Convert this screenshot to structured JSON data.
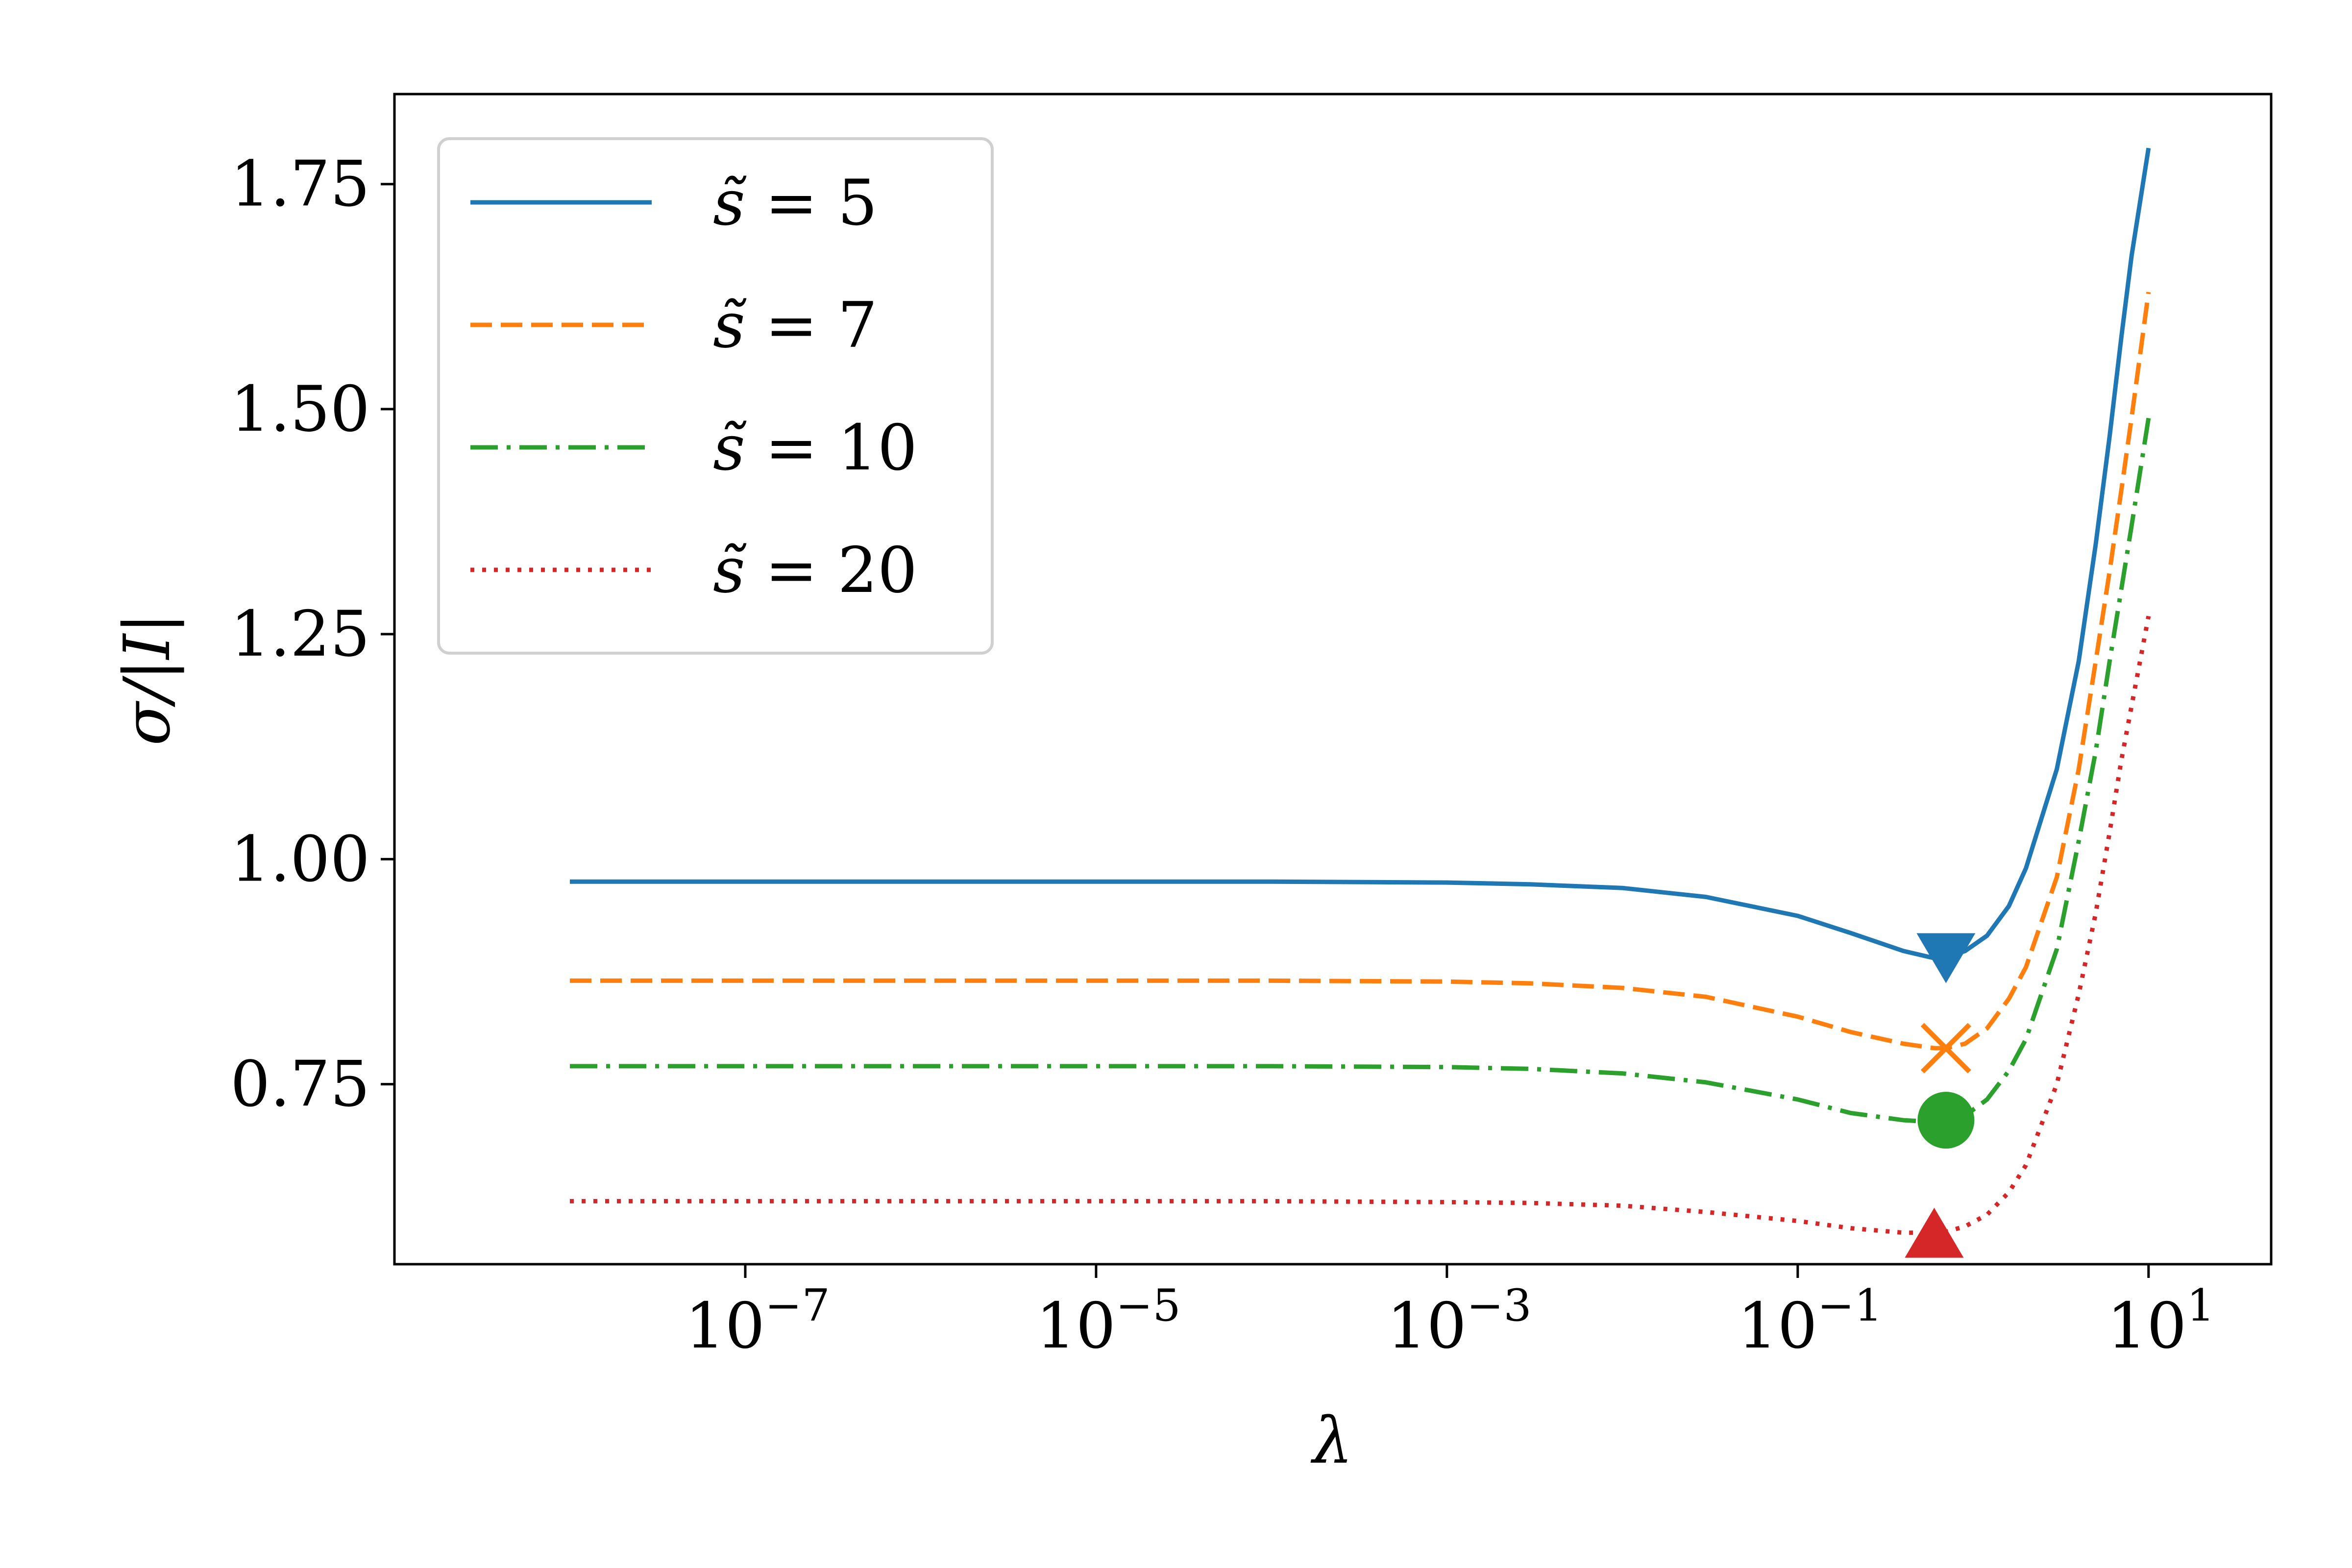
{
  "chart_data": {
    "type": "line",
    "xlabel": "λ",
    "ylabel": "σ/|I|",
    "x_scale": "log",
    "xlim": [
      1e-09,
      50
    ],
    "ylim": [
      0.55,
      1.85
    ],
    "x_ticks": [
      {
        "value": 1e-07,
        "base": "10",
        "exp": "−7"
      },
      {
        "value": 1e-05,
        "base": "10",
        "exp": "−5"
      },
      {
        "value": 0.001,
        "base": "10",
        "exp": "−3"
      },
      {
        "value": 0.1,
        "base": "10",
        "exp": "−1"
      },
      {
        "value": 10,
        "base": "10",
        "exp": "1"
      }
    ],
    "y_ticks": [
      {
        "value": 0.75,
        "label": "0.75"
      },
      {
        "value": 1.0,
        "label": "1.00"
      },
      {
        "value": 1.25,
        "label": "1.25"
      },
      {
        "value": 1.5,
        "label": "1.50"
      },
      {
        "value": 1.75,
        "label": "1.75"
      }
    ],
    "grid": false,
    "legend_position": "upper-left",
    "series": [
      {
        "name": "s̃ = 5",
        "legend_var": "s̃",
        "legend_val": "5",
        "color": "#1f77b4",
        "dash": "solid",
        "marker": "triangle-down",
        "x": [
          1e-08,
          1e-06,
          0.0001,
          0.001,
          0.003,
          0.01,
          0.03,
          0.1,
          0.2,
          0.4,
          0.6,
          0.7,
          0.9,
          1.2,
          1.6,
          2,
          3,
          4,
          5,
          6,
          7,
          8,
          10
        ],
        "y": [
          0.975,
          0.975,
          0.975,
          0.974,
          0.972,
          0.968,
          0.958,
          0.937,
          0.918,
          0.898,
          0.89,
          0.891,
          0.898,
          0.915,
          0.948,
          0.99,
          1.1,
          1.22,
          1.35,
          1.47,
          1.58,
          1.67,
          1.79
        ],
        "min_point": [
          0.7,
          0.89
        ]
      },
      {
        "name": "s̃ = 7",
        "legend_var": "s̃",
        "legend_val": "7",
        "color": "#ff7f0e",
        "dash": "dashed",
        "marker": "x",
        "x": [
          1e-08,
          1e-06,
          0.0001,
          0.001,
          0.003,
          0.01,
          0.03,
          0.1,
          0.2,
          0.4,
          0.6,
          0.7,
          0.9,
          1.2,
          1.6,
          2,
          3,
          4,
          5,
          6,
          7,
          8,
          10
        ],
        "y": [
          0.865,
          0.865,
          0.865,
          0.864,
          0.862,
          0.857,
          0.847,
          0.825,
          0.808,
          0.795,
          0.79,
          0.79,
          0.795,
          0.812,
          0.845,
          0.88,
          0.98,
          1.1,
          1.22,
          1.32,
          1.41,
          1.49,
          1.63
        ],
        "min_point": [
          0.7,
          0.79
        ]
      },
      {
        "name": "s̃ = 10",
        "legend_var": "s̃",
        "legend_val": "10",
        "color": "#2ca02c",
        "dash": "dashdot",
        "marker": "circle",
        "x": [
          1e-08,
          1e-06,
          0.0001,
          0.001,
          0.003,
          0.01,
          0.03,
          0.1,
          0.2,
          0.4,
          0.6,
          0.7,
          0.9,
          1.2,
          1.6,
          2,
          3,
          4,
          5,
          6,
          7,
          8,
          10
        ],
        "y": [
          0.77,
          0.77,
          0.77,
          0.769,
          0.767,
          0.762,
          0.752,
          0.733,
          0.718,
          0.71,
          0.708,
          0.71,
          0.715,
          0.733,
          0.765,
          0.8,
          0.9,
          1.02,
          1.12,
          1.22,
          1.3,
          1.37,
          1.49
        ],
        "min_point": [
          0.7,
          0.71
        ]
      },
      {
        "name": "s̃ = 20",
        "legend_var": "s̃",
        "legend_val": "20",
        "color": "#d62728",
        "dash": "dotted",
        "marker": "triangle-up",
        "x": [
          1e-08,
          1e-06,
          0.0001,
          0.001,
          0.003,
          0.01,
          0.03,
          0.1,
          0.2,
          0.4,
          0.6,
          0.7,
          0.9,
          1.2,
          1.6,
          2,
          3,
          4,
          5,
          6,
          7,
          8,
          10
        ],
        "y": [
          0.62,
          0.62,
          0.62,
          0.619,
          0.618,
          0.615,
          0.608,
          0.598,
          0.59,
          0.585,
          0.585,
          0.586,
          0.592,
          0.605,
          0.63,
          0.66,
          0.75,
          0.85,
          0.94,
          1.03,
          1.11,
          1.17,
          1.27
        ],
        "min_point": [
          0.6,
          0.585
        ]
      }
    ]
  }
}
